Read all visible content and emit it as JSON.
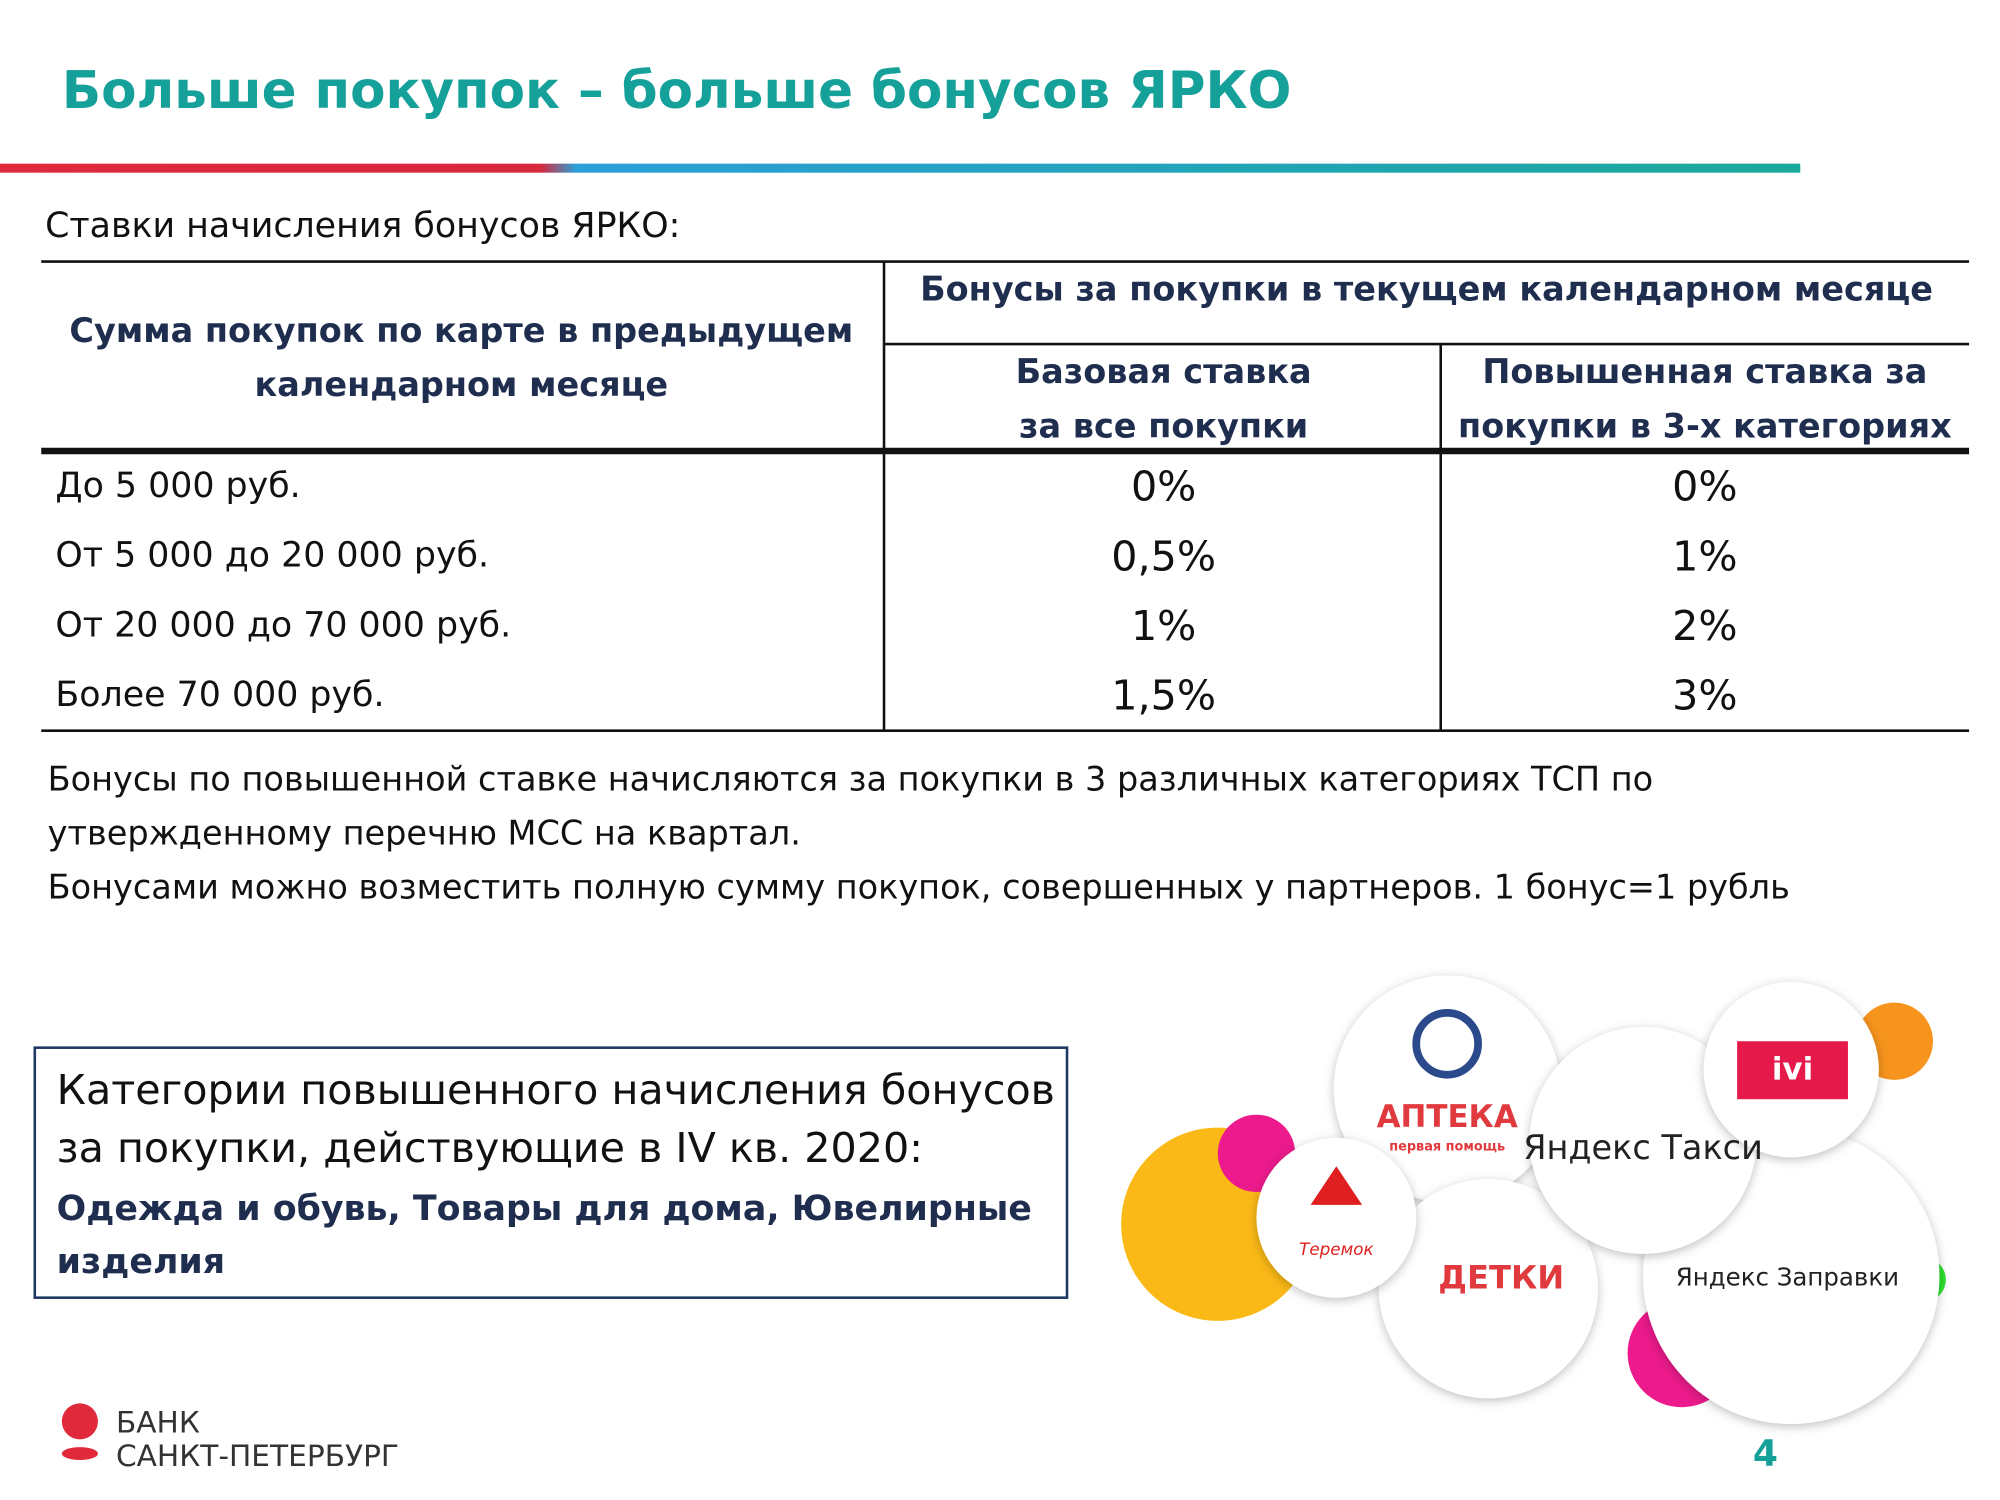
{
  "header": {
    "title": "Больше покупок – больше бонусов ЯРКО"
  },
  "intro": "Ставки начисления бонусов ЯРКО:",
  "table": {
    "header_left": [
      "Сумма покупок по карте в предыдущем",
      "календарном месяце"
    ],
    "header_group": "Бонусы за покупки в текущем календарном месяце",
    "header_base": [
      "Базовая ставка",
      "за все покупки"
    ],
    "header_raised": [
      "Повышенная ставка за",
      "покупки в 3-х категориях"
    ],
    "rows": [
      [
        "До 5 000 руб.",
        "0%",
        "0%"
      ],
      [
        "От 5 000 до 20 000 руб.",
        "0,5%",
        "1%"
      ],
      [
        "От 20 000 до 70 000 руб.",
        "1%",
        "2%"
      ],
      [
        "Более 70 000 руб.",
        "1,5%",
        "3%"
      ]
    ]
  },
  "notes": [
    "Бонусы по повышенной ставке начисляются за покупки в 3 различных категориях ТСП по",
    "утвержденному перечню МСС на квартал.",
    "Бонусами можно возместить полную сумму покупок, совершенных у партнеров. 1 бонус=1 рубль"
  ],
  "box": {
    "lines": [
      "Категории повышенного начисления бонусов",
      "за покупки, действующие в IV кв. 2020:"
    ],
    "categories": [
      "Одежда и обувь, Товары для дома, Ювелирные",
      "изделия"
    ]
  },
  "logos": {
    "apteka": "АПТЕКА",
    "apteka_sub": "первая помощь",
    "taxi": "Яндекс Такси",
    "ivi": "ivi",
    "teremok": "Теремок",
    "detki": "ДЕТКИ",
    "zapravki": "Яндекс Заправки"
  },
  "footer": {
    "bank": [
      "БАНК",
      "САНКТ-ПЕТЕРБУРГ"
    ],
    "page": "4"
  }
}
